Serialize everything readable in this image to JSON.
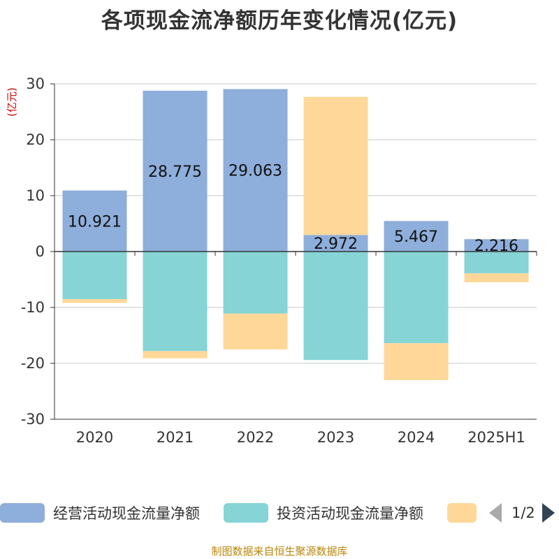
{
  "title": "各项现金流净额历年变化情况(亿元)",
  "source": "制图数据来自恒生聚源数据库",
  "colors": {
    "operating": "#8eaedb",
    "investing": "#86d4d6",
    "financing": "#ffd899",
    "axis_unit": "#d00000"
  },
  "legend": {
    "items": [
      {
        "label": "经营活动现金流量净额",
        "color": "#8eaedb"
      },
      {
        "label": "投资活动现金流量净额",
        "color": "#86d4d6"
      },
      {
        "label": "",
        "color": "#ffd899"
      }
    ],
    "page": "1/2",
    "prev_icon": "triangle-left",
    "next_icon": "triangle-right"
  },
  "chart_data": {
    "type": "bar",
    "stacked": true,
    "categories": [
      "2020",
      "2021",
      "2022",
      "2023",
      "2024",
      "2025H1"
    ],
    "ylabel": "(亿元)",
    "ylim": [
      -30,
      30
    ],
    "yticks": [
      -30,
      -20,
      -10,
      0,
      10,
      20,
      30
    ],
    "grid": true,
    "legend_position": "bottom",
    "series": [
      {
        "name": "经营活动现金流量净额",
        "values": [
          10.921,
          28.775,
          29.063,
          2.972,
          5.467,
          2.216
        ],
        "labels": [
          "10.921",
          "28.775",
          "29.063",
          "2.972",
          "5.467",
          "2.216"
        ]
      },
      {
        "name": "投资活动现金流量净额",
        "values": [
          -8.5,
          -17.8,
          -11.1,
          -19.4,
          -16.4,
          -3.9
        ]
      },
      {
        "values": [
          -0.7,
          -1.3,
          -6.4,
          24.7,
          -6.6,
          -1.6
        ]
      }
    ]
  }
}
